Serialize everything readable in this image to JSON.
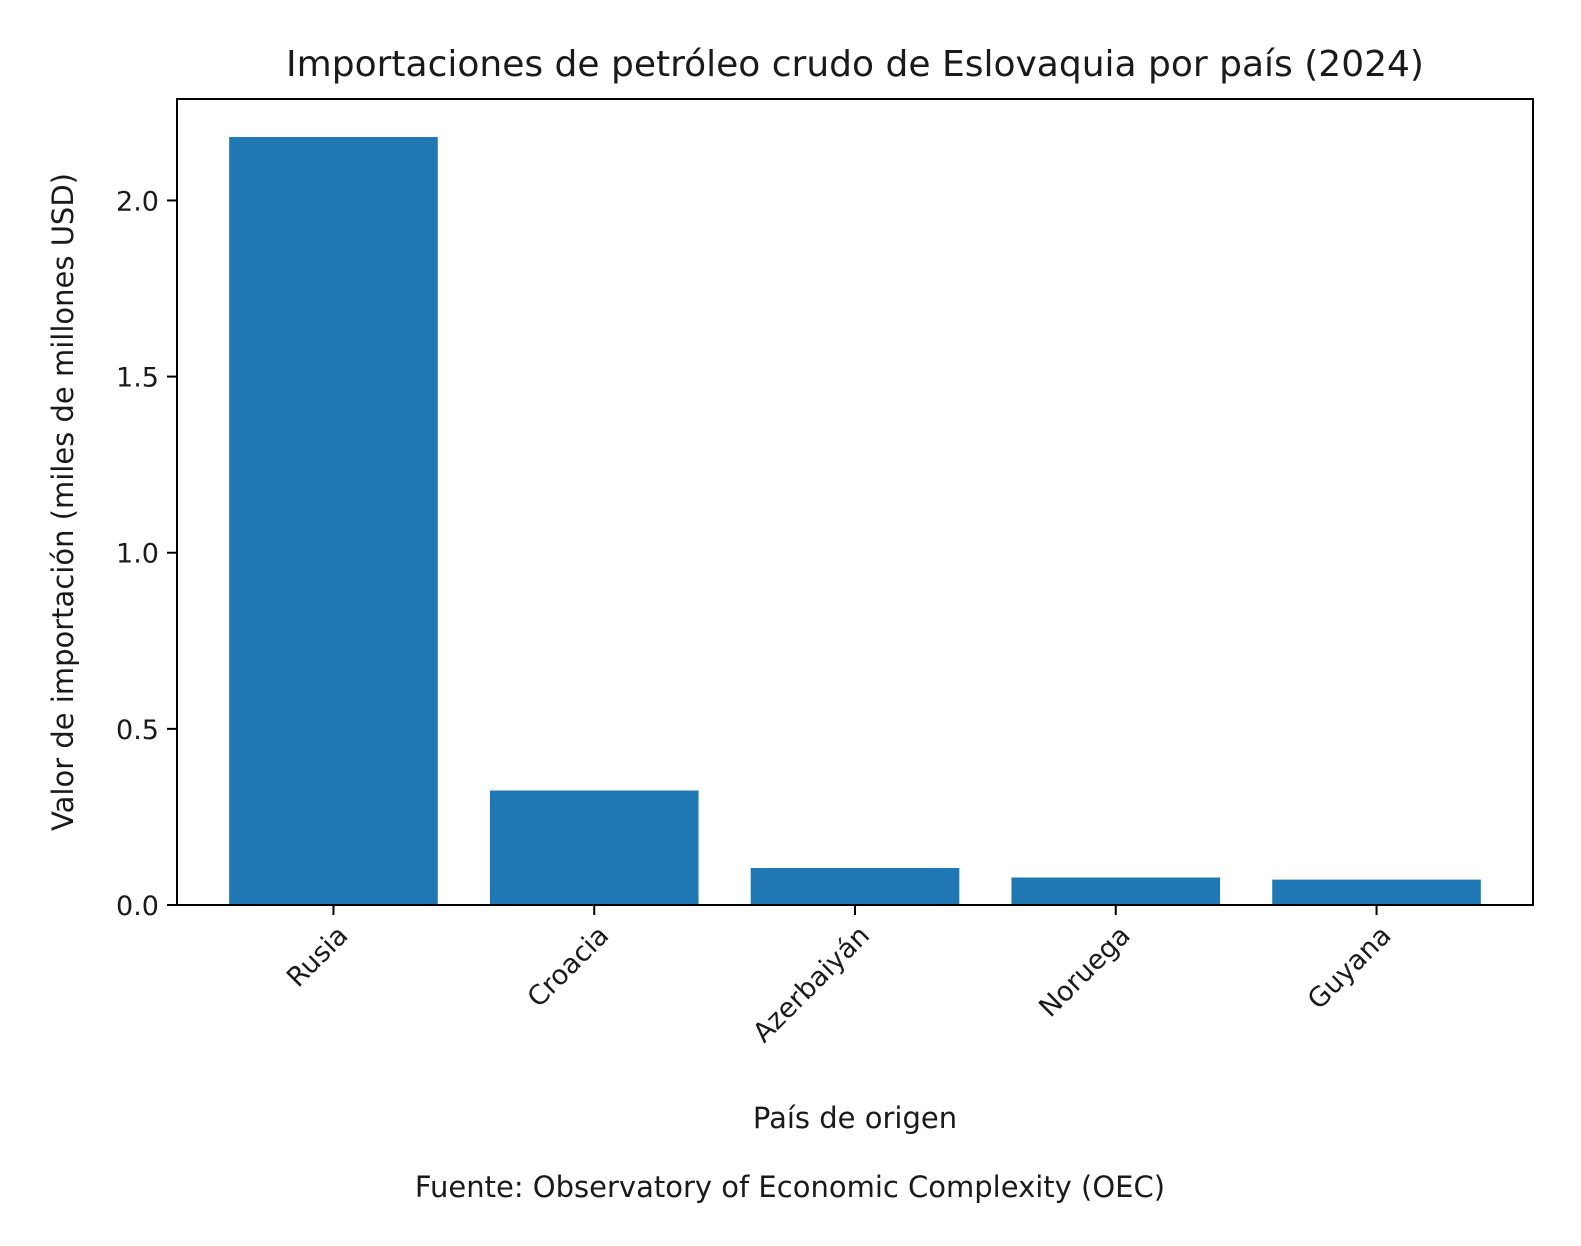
{
  "chart_data": {
    "type": "bar",
    "title": "Importaciones de petróleo crudo de Eslovaquia por país (2024)",
    "xlabel": "País de origen",
    "ylabel": "Valor de importación (miles de millones USD)",
    "categories": [
      "Rusia",
      "Croacia",
      "Azerbaiyán",
      "Noruega",
      "Guyana"
    ],
    "values": [
      2.18,
      0.325,
      0.105,
      0.078,
      0.072
    ],
    "ylim": [
      0,
      2.288
    ],
    "yticks": [
      "0.0",
      "0.5",
      "1.0",
      "1.5",
      "2.0"
    ],
    "bar_color": "#1f77b4",
    "grid": false,
    "legend": "none",
    "source": "Fuente: Observatory of Economic Complexity (OEC)"
  }
}
